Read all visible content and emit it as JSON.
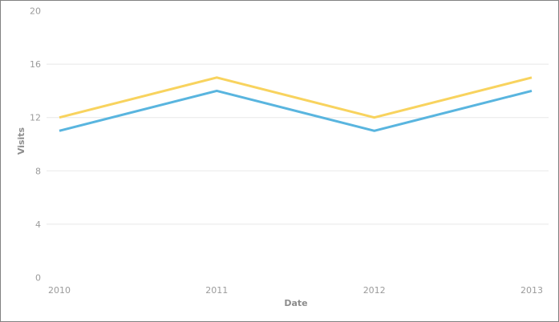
{
  "chart_data": {
    "type": "line",
    "title": "",
    "xlabel": "Date",
    "ylabel": "Visits",
    "categories": [
      "2010",
      "2011",
      "2012",
      "2013"
    ],
    "series": [
      {
        "name": "yellow-line",
        "color": "#f8d35e",
        "values": [
          12,
          15,
          12,
          15
        ]
      },
      {
        "name": "blue-line",
        "color": "#59b5df",
        "values": [
          11,
          14,
          11,
          14
        ]
      }
    ],
    "ylim": [
      0,
      20
    ],
    "yticks": [
      0,
      4,
      8,
      12,
      16,
      20
    ],
    "gridline_values": [
      4,
      8,
      12,
      16
    ],
    "legend": "none",
    "grid_on": true,
    "grid_color": "#e8e8e8",
    "tick_label_color": "#9b9b9b",
    "axis_title_color": "#8d8d8d",
    "line_width": 3
  },
  "frame": {
    "border_color": "#828282",
    "background_color": "#ffffff"
  }
}
